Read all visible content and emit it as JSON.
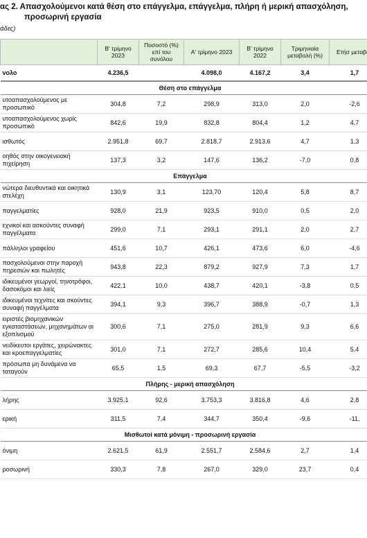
{
  "title": {
    "line1": "ας 2. Απασχολούμενοι κατά θέση στο επάγγελμα, επάγγελμα, πλήρη ή μερική απασχόληση,",
    "line2": "προσωρινή εργασία"
  },
  "unit": "άδες)",
  "table": {
    "header": [
      "Β' τρίμηνο 2023",
      "Ποσοστό (%) επί του συνόλου",
      "Α' τρίμηνο 2023",
      "Β' τρίμηνο 2022",
      "Τριμηνιαία μεταβολή (%)",
      "Ετήσ μεταβολ"
    ],
    "total": {
      "label": "νολο",
      "cells": [
        "4.236,5",
        null,
        "4.098,0",
        "4.167,2",
        "3,4",
        "1,7"
      ]
    },
    "groups": [
      {
        "title": "Θέση στο επάγγελμα",
        "rows": [
          {
            "label": "υτοαπασχολούμενος με προσωπικό",
            "cells": [
              "304,8",
              "7,2",
              "298,9",
              "313,0",
              "2,0",
              "-2,6"
            ]
          },
          {
            "label": "υτοαπασχολούμενος χωρίς προσωπικό",
            "cells": [
              "842,6",
              "19,9",
              "832,8",
              "804,4",
              "1,2",
              "4,7"
            ]
          },
          {
            "label": "ισθωτός",
            "cells": [
              "2.951,8",
              "69,7",
              "2.818,7",
              "2.913,6",
              "4,7",
              "1,3"
            ]
          },
          {
            "label": "οηθός στην οικογενειακή πιχείρηση",
            "cells": [
              "137,3",
              "3,2",
              "147,6",
              "136,2",
              "-7,0",
              "0,8"
            ]
          }
        ]
      },
      {
        "title": "Επάγγελμα",
        "rows": [
          {
            "label": "νώτερα διευθυντικά και οικητικά στελέχη",
            "cells": [
              "130,9",
              "3,1",
              "123,70",
              "120,4",
              "5,8",
              "8,7"
            ]
          },
          {
            "label": "παγγελματίες",
            "cells": [
              "928,0",
              "21,9",
              "923,5",
              "910,0",
              "0,5",
              "2,0"
            ]
          },
          {
            "label": "εχνικοί και ασκούντες συναφή παγγέλματα",
            "cells": [
              "299,0",
              "7,1",
              "293,1",
              "291,1",
              "2,0",
              "2,7"
            ]
          },
          {
            "label": "πάλληλοι γραφείου",
            "cells": [
              "451,6",
              "10,7",
              "426,1",
              "473,6",
              "6,0",
              "-4,6"
            ]
          },
          {
            "label": "πασχολούμενοι στην παροχή πηρεσιών και πωλητές",
            "cells": [
              "943,8",
              "22,3",
              "879,2",
              "927,9",
              "7,3",
              "1,7"
            ]
          },
          {
            "label": "ιδικευμένοι γεωργοί, τηνοτρόφοι, δασοκόμοι και λιείς",
            "cells": [
              "422,1",
              "10,0",
              "438,7",
              "420,1",
              "-3,8",
              "0,5"
            ]
          },
          {
            "label": "ιδικευμένοι τεχνίτες και σκούντες συναφή παγγέλματα",
            "cells": [
              "394,1",
              "9,3",
              "396,7",
              "388,9",
              "-0,7",
              "1,3"
            ]
          },
          {
            "label": "ειριστές βιομηχανικών εγκαταστάσεων, μηχανημάτων αι εξοπλισμού",
            "cells": [
              "300,6",
              "7,1",
              "275,0",
              "281,9",
              "9,3",
              "6,6"
            ]
          },
          {
            "label": "νειδίκευτοι εργάτες, χειρώνακτες και κροεπαγγελματίες",
            "cells": [
              "301,0",
              "7,1",
              "272,7",
              "285,6",
              "10,4",
              "5,4"
            ]
          },
          {
            "label": "πρόσωπα μη δυνάμενα να ταταγούν",
            "cells": [
              "65,5",
              "1,5",
              "69,3",
              "67,7",
              "-5,5",
              "-3,2"
            ]
          }
        ]
      },
      {
        "title": "Πλήρης - μερική απασχόληση",
        "rows": [
          {
            "label": "λήρης",
            "cells": [
              "3.925,1",
              "92,6",
              "3.753,3",
              "3.816,8",
              "4,6",
              "2,8"
            ]
          },
          {
            "label": "ερική",
            "cells": [
              "311,5",
              "7,4",
              "344,7",
              "350,4",
              "-9,6",
              "-11,"
            ]
          }
        ]
      },
      {
        "title": "Μισθωτοί κατά μόνιμη - προσωρινή εργασία",
        "rows": [
          {
            "label": "όνιμη",
            "cells": [
              "2.621,5",
              "61,9",
              "2.551,7",
              "2.584,6",
              "2,7",
              "1,4"
            ]
          },
          {
            "label": "ροσωρινή",
            "cells": [
              "330,3",
              "7,8",
              "267,0",
              "329,0",
              "23,7",
              "0,4"
            ]
          }
        ]
      }
    ]
  }
}
